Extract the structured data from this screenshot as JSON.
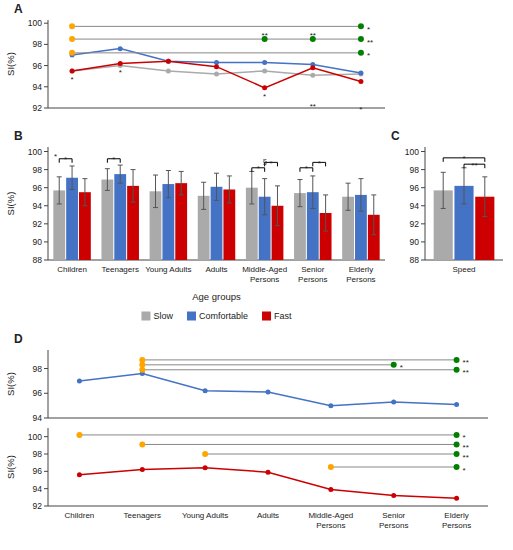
{
  "chart_data": [
    {
      "type": "line",
      "title": "A",
      "ylabel": "SI(%)",
      "categories": [
        null,
        null,
        null,
        null,
        null,
        null,
        null
      ],
      "tick_labels": "y",
      "ylim": [
        92,
        100.3
      ],
      "yticks": [
        92,
        94,
        96,
        98,
        100
      ],
      "series": [
        {
          "color": "#aaaaaa",
          "marker": "circle",
          "values": [
            95.5,
            96.0,
            95.5,
            95.2,
            95.5,
            95.1,
            95.2
          ]
        },
        {
          "color": "#4472c4",
          "marker": "circle",
          "values": [
            97.0,
            97.6,
            96.4,
            96.3,
            96.3,
            96.1,
            95.3
          ]
        },
        {
          "color": "#cc0000",
          "marker": "circle",
          "values": [
            95.5,
            96.2,
            96.4,
            95.9,
            93.9,
            95.8,
            94.5
          ]
        }
      ],
      "sig_lines": [
        {
          "x1": 0,
          "x2": 6,
          "y": 99.7,
          "label": "*"
        },
        {
          "x1": 0,
          "x2": 6,
          "y": 98.5,
          "label": "**",
          "mid_dots": [
            4,
            5
          ],
          "mid_label": "**"
        },
        {
          "x1": 0,
          "x2": 6,
          "y": 97.2,
          "label": "*"
        }
      ],
      "annotations": [
        {
          "x": 0,
          "y": 95.0,
          "text": "*"
        },
        {
          "x": 1,
          "y": 95.7,
          "text": "*"
        },
        {
          "x": 4,
          "y": 93.4,
          "text": "*"
        },
        {
          "x": 5,
          "y": 92.5,
          "text": "**"
        },
        {
          "x": 6,
          "y": 92.2,
          "text": "*"
        }
      ]
    },
    {
      "type": "bar",
      "title": "B",
      "ylabel": "SI(%)",
      "xlabel": "Age groups",
      "categories": [
        "Children",
        "Teenagers",
        "Young Adults",
        "Adults",
        "Middle-Aged\nPersons",
        "Senior\nPersons",
        "Elderly\nPersons"
      ],
      "legend": "bottom",
      "ylim": [
        88,
        100.5
      ],
      "yticks": [
        88,
        90,
        92,
        94,
        96,
        98,
        100
      ],
      "series": [
        {
          "name": "Slow",
          "color": "#aaaaaa",
          "values": [
            95.7,
            96.9,
            95.6,
            95.1,
            96.0,
            95.4,
            95.0
          ],
          "errors": [
            1.5,
            1.2,
            1.8,
            1.5,
            1.8,
            1.5,
            1.5
          ]
        },
        {
          "name": "Comfortable",
          "color": "#4472c4",
          "values": [
            97.1,
            97.5,
            96.4,
            96.1,
            95.0,
            95.5,
            95.2
          ],
          "errors": [
            1.3,
            1.0,
            1.5,
            1.5,
            2.0,
            1.8,
            1.8
          ]
        },
        {
          "name": "Fast",
          "color": "#cc0000",
          "values": [
            95.5,
            96.2,
            96.5,
            95.8,
            94.0,
            93.2,
            93.0
          ],
          "errors": [
            1.5,
            1.8,
            1.3,
            1.5,
            2.2,
            2.0,
            2.2
          ]
        }
      ],
      "brackets": [
        {
          "category": 0,
          "from": 0,
          "to": 1,
          "y": 99.2,
          "label": "*"
        },
        {
          "category": 1,
          "from": 0,
          "to": 1,
          "y": 99.2,
          "label": "*"
        },
        {
          "category": 4,
          "from": 1,
          "to": 2,
          "y": 98.8,
          "label": "*"
        },
        {
          "category": 4,
          "from": 0,
          "to": 1,
          "y": 98.2,
          "label": "*"
        },
        {
          "category": 5,
          "from": 1,
          "to": 2,
          "y": 98.8,
          "label": "*"
        },
        {
          "category": 5,
          "from": 0,
          "to": 1,
          "y": 98.2,
          "label": "*"
        }
      ],
      "annotations": [
        {
          "category": 0,
          "series": 0,
          "y": 99.35,
          "text": "*"
        },
        {
          "category": 4,
          "y": 98.5,
          "text": "§"
        }
      ]
    },
    {
      "type": "bar",
      "title": "C",
      "categories": [
        "Speed"
      ],
      "ylim": [
        88,
        100.5
      ],
      "yticks": [
        88,
        90,
        92,
        94,
        96,
        98,
        100
      ],
      "series": [
        {
          "color": "#aaaaaa",
          "values": [
            95.7
          ],
          "errors": [
            2.0
          ]
        },
        {
          "color": "#4472c4",
          "values": [
            96.2
          ],
          "errors": [
            2.0
          ]
        },
        {
          "color": "#cc0000",
          "values": [
            95.0
          ],
          "errors": [
            2.2
          ]
        }
      ],
      "brackets": [
        {
          "category": 0,
          "from": 0,
          "to": 2,
          "y": 99.3,
          "label": "*"
        },
        {
          "category": 0,
          "from": 1,
          "to": 2,
          "y": 98.6,
          "label": "**"
        }
      ]
    },
    {
      "type": "line",
      "title": "D",
      "ylabel": "SI(%)",
      "categories": [
        null,
        null,
        null,
        null,
        null,
        null,
        null
      ],
      "tick_labels": "y",
      "ylim": [
        94,
        99.5
      ],
      "yticks": [
        94,
        96,
        98
      ],
      "series": [
        {
          "color": "#4472c4",
          "marker": "circle",
          "values": [
            97.0,
            97.6,
            96.2,
            96.1,
            95.0,
            95.3,
            95.1
          ]
        }
      ],
      "sig_lines": [
        {
          "x1": 1,
          "x2": 6,
          "y": 98.7,
          "label": "**"
        },
        {
          "x1": 1,
          "x2": 5,
          "y": 98.3,
          "label": "*"
        },
        {
          "x1": 1,
          "x2": 6,
          "y": 97.9,
          "label": "**"
        }
      ]
    },
    {
      "type": "line",
      "ylabel": "SI(%)",
      "categories": [
        "Children",
        "Teenagers",
        "Young Adults",
        "Adults",
        "Middle-Aged\nPersons",
        "Senior\nPersons",
        "Elderly\nPersons"
      ],
      "ylim": [
        92,
        101.0
      ],
      "yticks": [
        92,
        94,
        96,
        98,
        100
      ],
      "series": [
        {
          "color": "#cc0000",
          "marker": "circle",
          "values": [
            95.6,
            96.2,
            96.4,
            95.9,
            93.9,
            93.2,
            92.9
          ]
        }
      ],
      "sig_lines": [
        {
          "x1": 0,
          "x2": 6,
          "y": 100.2,
          "label": "*"
        },
        {
          "x1": 1,
          "x2": 6,
          "y": 99.1,
          "label": "**"
        },
        {
          "x1": 2,
          "x2": 6,
          "y": 98.0,
          "label": "**"
        },
        {
          "x1": 4,
          "x2": 6,
          "y": 96.5,
          "label": "*"
        }
      ]
    }
  ]
}
